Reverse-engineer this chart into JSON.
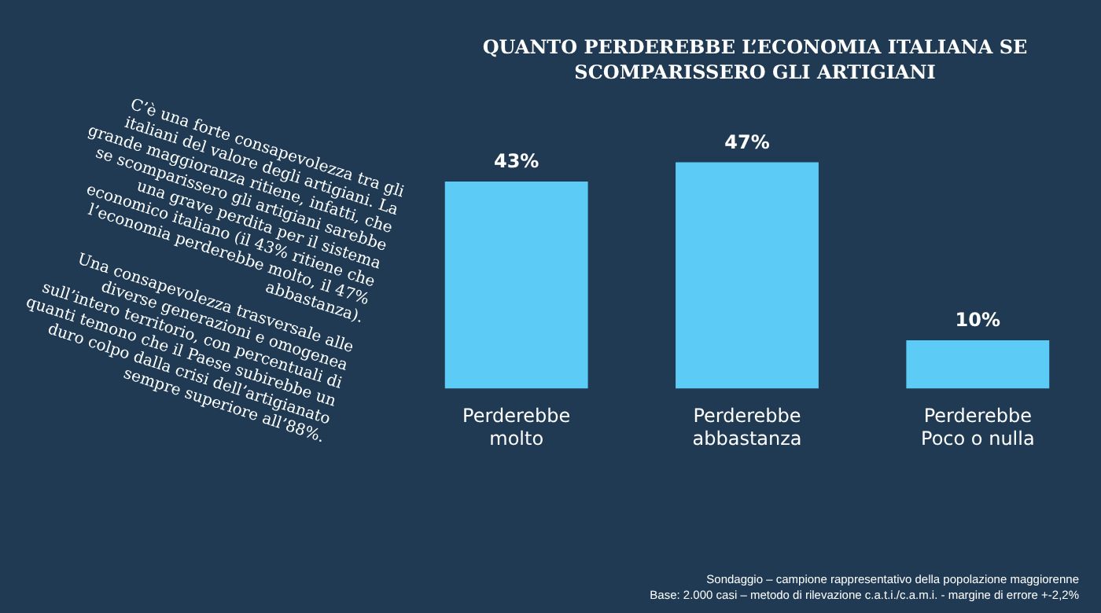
{
  "chart_data": {
    "type": "bar",
    "title": "QUANTO PERDEREBBE L’ECONOMIA ITALIANA SE SCOMPARISSERO GLI ARTIGIANI",
    "categories": [
      "Perderebbe molto",
      "Perderebbe abbastanza",
      "Perderebbe Poco o nulla"
    ],
    "values": [
      43,
      47,
      10
    ],
    "value_labels": [
      "43%",
      "47%",
      "10%"
    ],
    "color": "#5ccbf5",
    "tick_labels": "x",
    "grid": false,
    "legend": false,
    "annotations": [
      "C’è una forte consapevolezza tra gli italiani del valore degli artigiani. La grande maggioranza ritiene, infatti, che se scomparissero gli artigiani sarebbe una grave perdita per il sistema economico italiano (il 43% ritiene che l’economia perderebbe molto, il 47% abbastanza).",
      "Una consapevolezza trasversale alle diverse generazioni e omogenea sull’intero territorio, con percentuali di quanti temono che il Paese subirebbe un duro colpo dalla crisi dell’artigianato sempre superiore all’88%.",
      "Sondaggio – campione rappresentativo della popolazione maggiorenne",
      "Base: 2.000 casi – metodo di rilevazione c.a.t.i./c.a.m.i. - margine di errore +-2,2%"
    ]
  }
}
